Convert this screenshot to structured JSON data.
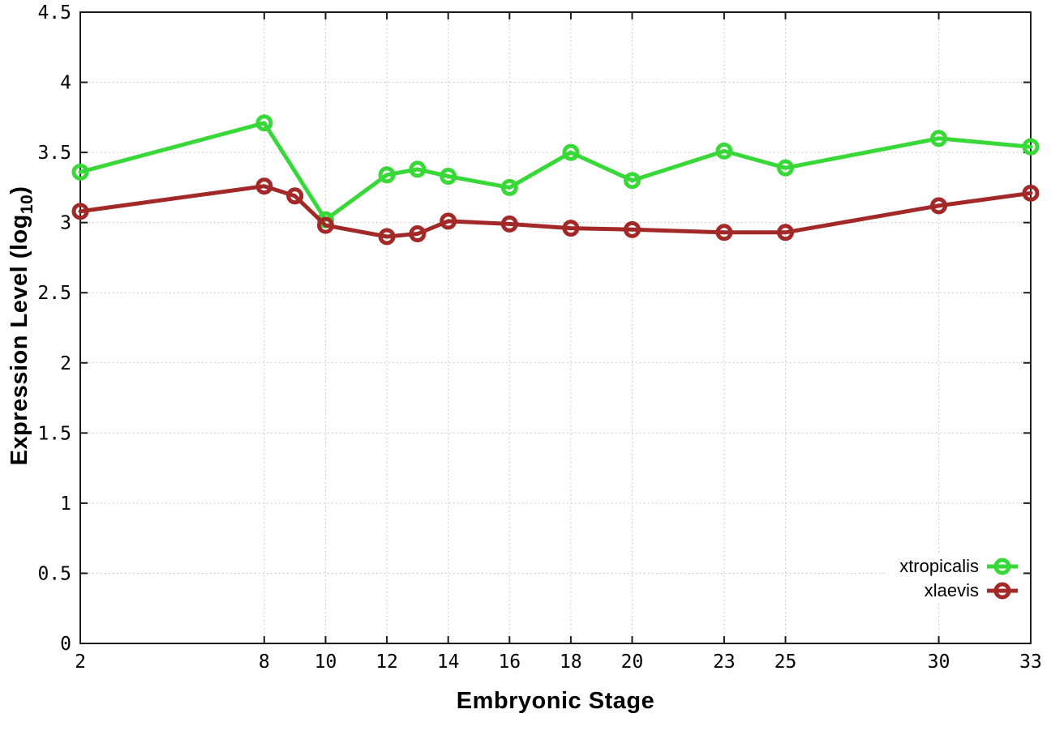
{
  "figure": {
    "background": "#ffffff",
    "border_color": "#1c1c1c",
    "grid_color": "#bdbdbd",
    "xlabel": "Embryonic Stage",
    "ylabel_main": "Expression Level (log",
    "ylabel_sub": "10",
    "ylabel_end": ")"
  },
  "legend": {
    "position": "bottom-right",
    "items": [
      {
        "label": "xtropicalis",
        "color": "#37d837"
      },
      {
        "label": "xlaevis",
        "color": "#a32828"
      }
    ]
  },
  "chart_data": {
    "type": "line",
    "title": "",
    "xlabel": "Embryonic Stage",
    "ylabel": "Expression Level (log10)",
    "xlim": [
      2,
      33
    ],
    "ylim": [
      0,
      4.5
    ],
    "x_ticks": [
      2,
      8,
      10,
      12,
      14,
      16,
      18,
      20,
      23,
      25,
      30,
      33
    ],
    "y_ticks": [
      0,
      0.5,
      1,
      1.5,
      2,
      2.5,
      3,
      3.5,
      4,
      4.5
    ],
    "grid": true,
    "grid_style": "dotted",
    "legend_position": "bottom-right",
    "marker": "open-circle",
    "series": [
      {
        "name": "xtropicalis",
        "color": "#37d837",
        "points": [
          [
            2,
            3.36
          ],
          [
            8,
            3.71
          ],
          [
            10,
            3.02
          ],
          [
            12,
            3.34
          ],
          [
            13,
            3.38
          ],
          [
            14,
            3.33
          ],
          [
            16,
            3.25
          ],
          [
            18,
            3.5
          ],
          [
            20,
            3.3
          ],
          [
            23,
            3.51
          ],
          [
            25,
            3.39
          ],
          [
            30,
            3.6
          ],
          [
            33,
            3.54
          ]
        ]
      },
      {
        "name": "xlaevis",
        "color": "#a32828",
        "points": [
          [
            2,
            3.08
          ],
          [
            8,
            3.26
          ],
          [
            9,
            3.19
          ],
          [
            10,
            2.98
          ],
          [
            12,
            2.9
          ],
          [
            13,
            2.92
          ],
          [
            14,
            3.01
          ],
          [
            16,
            2.99
          ],
          [
            18,
            2.96
          ],
          [
            20,
            2.95
          ],
          [
            23,
            2.93
          ],
          [
            25,
            2.93
          ],
          [
            30,
            3.12
          ],
          [
            33,
            3.21
          ]
        ]
      }
    ]
  }
}
